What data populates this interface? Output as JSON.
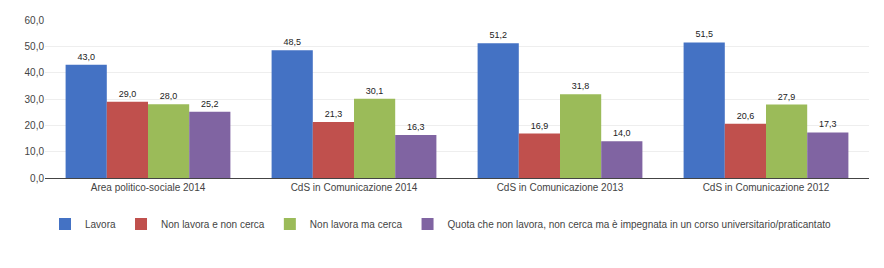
{
  "chart_data": {
    "type": "bar",
    "categories": [
      "Area politico-sociale 2014",
      "CdS in Comunicazione 2014",
      "CdS in Comunicazione 2013",
      "CdS in Comunicazione 2012"
    ],
    "series": [
      {
        "name": "Lavora",
        "color": "#4472C4",
        "values": [
          43.0,
          48.5,
          51.2,
          51.5
        ],
        "value_labels": [
          "43,0",
          "48,5",
          "51,2",
          "51,5"
        ]
      },
      {
        "name": "Non lavora e non cerca",
        "color": "#C0504D",
        "values": [
          29.0,
          21.3,
          16.9,
          20.6
        ],
        "value_labels": [
          "29,0",
          "21,3",
          "16,9",
          "20,6"
        ]
      },
      {
        "name": "Non lavora ma cerca",
        "color": "#9BBB59",
        "values": [
          28.0,
          30.1,
          31.8,
          27.9
        ],
        "value_labels": [
          "28,0",
          "30,1",
          "31,8",
          "27,9"
        ]
      },
      {
        "name": "Quota che non lavora, non cerca ma è impegnata in un corso universitario/praticantato",
        "color": "#8064A2",
        "values": [
          25.2,
          16.3,
          14.0,
          17.3
        ],
        "value_labels": [
          "25,2",
          "16,3",
          "14,0",
          "17,3"
        ]
      }
    ],
    "ylim": [
      0,
      60
    ],
    "yticks": [
      {
        "value": 0,
        "label": "0,0"
      },
      {
        "value": 10,
        "label": "10,0"
      },
      {
        "value": 20,
        "label": "20,0"
      },
      {
        "value": 30,
        "label": "30,0"
      },
      {
        "value": 40,
        "label": "40,0"
      },
      {
        "value": 50,
        "label": "50,0"
      },
      {
        "value": 60,
        "label": "60,0"
      }
    ],
    "grid": true,
    "data_labels": true,
    "legend": "bottom"
  }
}
